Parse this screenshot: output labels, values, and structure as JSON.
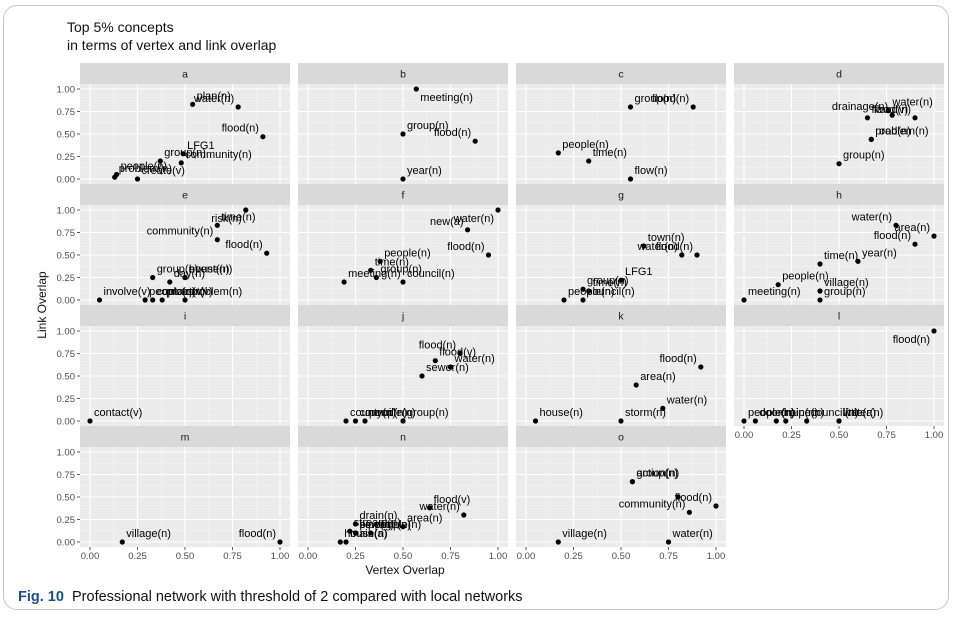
{
  "figure": {
    "title_line1": "Top 5% concepts",
    "title_line2": "in terms of vertex and link overlap",
    "caption_label": "Fig. 10",
    "caption_text": "Professional network with threshold of 2 compared with local networks"
  },
  "chart_data": {
    "type": "scatter",
    "title": "Top 5% concepts in terms of vertex and link overlap",
    "xlabel": "Vertex Overlap",
    "ylabel": "Link Overlap",
    "xlim": [
      0,
      1
    ],
    "ylim": [
      0,
      1
    ],
    "x_ticks": [
      "0.00",
      "0.25",
      "0.50",
      "0.75",
      "1.00"
    ],
    "y_ticks": [
      "0.00",
      "0.25",
      "0.50",
      "0.75",
      "1.00"
    ],
    "grid": true,
    "facets": [
      {
        "name": "a",
        "points": [
          {
            "label": "plan(n)",
            "x": 0.54,
            "y": 0.83
          },
          {
            "label": "water(n)",
            "x": 0.78,
            "y": 0.8
          },
          {
            "label": "flood(n)",
            "x": 0.91,
            "y": 0.47
          },
          {
            "label": "group(n)",
            "x": 0.37,
            "y": 0.2
          },
          {
            "label": "LFG1",
            "x": 0.49,
            "y": 0.28
          },
          {
            "label": "people(n)",
            "x": 0.14,
            "y": 0.05
          },
          {
            "label": "problem(n)",
            "x": 0.13,
            "y": 0.02
          },
          {
            "label": "create(v)",
            "x": 0.25,
            "y": 0.0
          },
          {
            "label": "community(n)",
            "x": 0.48,
            "y": 0.18
          }
        ]
      },
      {
        "name": "b",
        "points": [
          {
            "label": "meeting(n)",
            "x": 0.57,
            "y": 1.0
          },
          {
            "label": "group(n)",
            "x": 0.5,
            "y": 0.5
          },
          {
            "label": "flood(n)",
            "x": 0.88,
            "y": 0.42
          },
          {
            "label": "year(n)",
            "x": 0.5,
            "y": 0.0
          }
        ]
      },
      {
        "name": "c",
        "points": [
          {
            "label": "group(n)",
            "x": 0.55,
            "y": 0.8
          },
          {
            "label": "flood(n)",
            "x": 0.88,
            "y": 0.8
          },
          {
            "label": "people(n)",
            "x": 0.17,
            "y": 0.29
          },
          {
            "label": "time(n)",
            "x": 0.33,
            "y": 0.2
          },
          {
            "label": "flow(n)",
            "x": 0.55,
            "y": 0.0
          }
        ]
      },
      {
        "name": "d",
        "points": [
          {
            "label": "water(n)",
            "x": 0.76,
            "y": 0.76
          },
          {
            "label": "flood(v)",
            "x": 0.65,
            "y": 0.68
          },
          {
            "label": "drainage(n)",
            "x": 0.78,
            "y": 0.71
          },
          {
            "label": "flood(n)",
            "x": 0.9,
            "y": 0.68
          },
          {
            "label": "problem(n)",
            "x": 0.67,
            "y": 0.44
          },
          {
            "label": "road(n)",
            "x": 0.67,
            "y": 0.44
          },
          {
            "label": "group(n)",
            "x": 0.5,
            "y": 0.17
          }
        ]
      },
      {
        "name": "e",
        "points": [
          {
            "label": "time(n)",
            "x": 0.67,
            "y": 0.83
          },
          {
            "label": "risk(n)",
            "x": 0.82,
            "y": 1.0
          },
          {
            "label": "community(n)",
            "x": 0.67,
            "y": 0.67
          },
          {
            "label": "flood(n)",
            "x": 0.93,
            "y": 0.52
          },
          {
            "label": "group(n)",
            "x": 0.33,
            "y": 0.25
          },
          {
            "label": "house(n)",
            "x": 0.5,
            "y": 0.25
          },
          {
            "label": "event(n)",
            "x": 0.5,
            "y": 0.25
          },
          {
            "label": "people(n)",
            "x": 0.29,
            "y": 0.0
          },
          {
            "label": "involve(v)",
            "x": 0.05,
            "y": 0.0
          },
          {
            "label": "protect(v)",
            "x": 0.38,
            "y": 0.0
          },
          {
            "label": "contact(v)",
            "x": 0.33,
            "y": 0.0
          },
          {
            "label": "day(n)",
            "x": 0.42,
            "y": 0.2
          },
          {
            "label": "problem(n)",
            "x": 0.5,
            "y": 0.0
          }
        ]
      },
      {
        "name": "f",
        "points": [
          {
            "label": "water(n)",
            "x": 1.0,
            "y": 1.0
          },
          {
            "label": "new(a)",
            "x": 0.84,
            "y": 0.78
          },
          {
            "label": "people(n)",
            "x": 0.38,
            "y": 0.43
          },
          {
            "label": "flood(n)",
            "x": 0.95,
            "y": 0.5
          },
          {
            "label": "time(n)",
            "x": 0.33,
            "y": 0.33
          },
          {
            "label": "meeting(n)",
            "x": 0.19,
            "y": 0.2
          },
          {
            "label": "group(n)",
            "x": 0.36,
            "y": 0.25
          },
          {
            "label": "council(n)",
            "x": 0.5,
            "y": 0.2
          }
        ]
      },
      {
        "name": "g",
        "points": [
          {
            "label": "town(n)",
            "x": 0.62,
            "y": 0.6
          },
          {
            "label": "flood(n)",
            "x": 0.9,
            "y": 0.5
          },
          {
            "label": "water(n)",
            "x": 0.82,
            "y": 0.5
          },
          {
            "label": "group(n)",
            "x": 0.3,
            "y": 0.12
          },
          {
            "label": "LFG1",
            "x": 0.5,
            "y": 0.22
          },
          {
            "label": "people(n)",
            "x": 0.2,
            "y": 0.0
          },
          {
            "label": "council(n)",
            "x": 0.3,
            "y": 0.0
          },
          {
            "label": "time(n)",
            "x": 0.33,
            "y": 0.1
          }
        ]
      },
      {
        "name": "h",
        "points": [
          {
            "label": "water(n)",
            "x": 0.8,
            "y": 0.83
          },
          {
            "label": "area(n)",
            "x": 1.0,
            "y": 0.71
          },
          {
            "label": "flood(n)",
            "x": 0.9,
            "y": 0.62
          },
          {
            "label": "year(n)",
            "x": 0.6,
            "y": 0.43
          },
          {
            "label": "time(n)",
            "x": 0.4,
            "y": 0.4
          },
          {
            "label": "people(n)",
            "x": 0.18,
            "y": 0.17
          },
          {
            "label": "village(n)",
            "x": 0.4,
            "y": 0.1
          },
          {
            "label": "meeting(n)",
            "x": 0.0,
            "y": 0.0
          },
          {
            "label": "group(n)",
            "x": 0.4,
            "y": 0.0
          }
        ]
      },
      {
        "name": "i",
        "points": [
          {
            "label": "contact(v)",
            "x": 0.0,
            "y": 0.0
          }
        ]
      },
      {
        "name": "j",
        "points": [
          {
            "label": "flood(v)",
            "x": 0.67,
            "y": 0.67
          },
          {
            "label": "flood(n)",
            "x": 0.8,
            "y": 0.75
          },
          {
            "label": "water(n)",
            "x": 0.75,
            "y": 0.6
          },
          {
            "label": "sewer(n)",
            "x": 0.6,
            "y": 0.5
          },
          {
            "label": "council(n)",
            "x": 0.25,
            "y": 0.0
          },
          {
            "label": "county(n)",
            "x": 0.2,
            "y": 0.0
          },
          {
            "label": "people(n)",
            "x": 0.3,
            "y": 0.0
          },
          {
            "label": "group(n)",
            "x": 0.5,
            "y": 0.0
          }
        ]
      },
      {
        "name": "k",
        "points": [
          {
            "label": "flood(n)",
            "x": 0.92,
            "y": 0.6
          },
          {
            "label": "area(n)",
            "x": 0.58,
            "y": 0.4
          },
          {
            "label": "water(n)",
            "x": 0.72,
            "y": 0.14
          },
          {
            "label": "house(n)",
            "x": 0.05,
            "y": 0.0
          },
          {
            "label": "storm(n)",
            "x": 0.5,
            "y": 0.0
          }
        ]
      },
      {
        "name": "l",
        "points": [
          {
            "label": "flood(n)",
            "x": 1.0,
            "y": 1.0
          },
          {
            "label": "drain(n)",
            "x": 0.17,
            "y": 0.0
          },
          {
            "label": "door(n)",
            "x": 0.06,
            "y": 0.0
          },
          {
            "label": "pipe(n)",
            "x": 0.22,
            "y": 0.0
          },
          {
            "label": "people(n)",
            "x": 0.0,
            "y": 0.0
          },
          {
            "label": "council(n)",
            "x": 0.33,
            "y": 0.0
          },
          {
            "label": "little(a)",
            "x": 0.5,
            "y": 0.0
          },
          {
            "label": "water(n)",
            "x": 0.5,
            "y": 0.0
          }
        ]
      },
      {
        "name": "m",
        "points": [
          {
            "label": "village(n)",
            "x": 0.17,
            "y": 0.0
          },
          {
            "label": "flood(n)",
            "x": 1.0,
            "y": 0.0
          }
        ]
      },
      {
        "name": "n",
        "points": [
          {
            "label": "sewage(n)",
            "x": 0.25,
            "y": 0.1
          },
          {
            "label": "main(a)",
            "x": 0.2,
            "y": 0.0
          },
          {
            "label": "drain(n)",
            "x": 0.25,
            "y": 0.2
          },
          {
            "label": "flood(v)",
            "x": 0.64,
            "y": 0.38
          },
          {
            "label": "stream(n)",
            "x": 0.22,
            "y": 0.12
          },
          {
            "label": "area(n)",
            "x": 0.5,
            "y": 0.17
          },
          {
            "label": "people(n)",
            "x": 0.33,
            "y": 0.1
          },
          {
            "label": "house(n)",
            "x": 0.17,
            "y": 0.0
          },
          {
            "label": "pipe(n)",
            "x": 0.25,
            "y": 0.1
          },
          {
            "label": "water(n)",
            "x": 0.82,
            "y": 0.3
          }
        ]
      },
      {
        "name": "o",
        "points": [
          {
            "label": "group(n)",
            "x": 0.56,
            "y": 0.67
          },
          {
            "label": "action(n)",
            "x": 0.56,
            "y": 0.67
          },
          {
            "label": "flood(n)",
            "x": 1.0,
            "y": 0.4
          },
          {
            "label": "community(n)",
            "x": 0.86,
            "y": 0.33
          },
          {
            "label": "village(n)",
            "x": 0.17,
            "y": 0.0
          },
          {
            "label": "water(n)",
            "x": 0.75,
            "y": 0.0
          },
          {
            "label": "",
            "x": 0.8,
            "y": 0.5
          }
        ]
      }
    ]
  }
}
